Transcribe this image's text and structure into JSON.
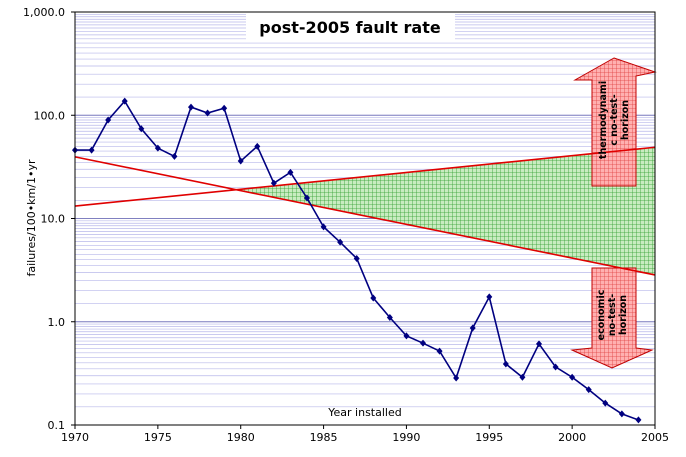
{
  "chart_data": {
    "type": "line",
    "title": "post-2005 fault rate",
    "xlabel": "Year installed",
    "ylabel": "failures/100•km/1•yr",
    "log_y": true,
    "grid": true,
    "xlim": [
      1970,
      2005
    ],
    "xticks": [
      1970,
      1975,
      1980,
      1985,
      1990,
      1995,
      2000,
      2005
    ],
    "ylim": [
      0.1,
      1000
    ],
    "yticks": [
      {
        "value": 0.1,
        "label": "0.1"
      },
      {
        "value": 1,
        "label": "1.0"
      },
      {
        "value": 10,
        "label": "10.0"
      },
      {
        "value": 100,
        "label": "100.0"
      },
      {
        "value": 1000,
        "label": "1,000.0"
      }
    ],
    "series": [
      {
        "color": "#000080",
        "x": [
          1970,
          1971,
          1972,
          1973,
          1974,
          1975,
          1976,
          1977,
          1978,
          1979,
          1980,
          1981,
          1982,
          1983,
          1984,
          1985,
          1986,
          1987,
          1988,
          1989,
          1990,
          1991,
          1992,
          1993,
          1994,
          1995,
          1996,
          1997,
          1998,
          1999,
          2000,
          2001,
          2002,
          2003,
          2004
        ],
        "values": [
          46,
          46,
          90,
          137,
          74,
          48,
          40,
          120,
          105,
          117,
          36,
          50,
          22,
          28,
          15.8,
          8.3,
          5.9,
          4.1,
          1.7,
          1.1,
          0.73,
          0.62,
          0.52,
          0.285,
          0.87,
          1.74,
          0.39,
          0.29,
          0.61,
          0.365,
          0.29,
          0.22,
          0.163,
          0.128,
          0.112
        ]
      }
    ],
    "trend_lines": [
      {
        "color": "#e00000",
        "x": [
          1970,
          2005
        ],
        "values": [
          13.2,
          49
        ]
      },
      {
        "color": "#e00000",
        "x": [
          1970,
          2005
        ],
        "values": [
          39.5,
          2.84
        ]
      }
    ],
    "band_color": "#2e9e2e",
    "annotations": [
      {
        "lines": [
          "thermodynami",
          "c no-test-",
          "horizon"
        ]
      },
      {
        "lines": [
          "economic",
          "no-test-",
          "horizon"
        ]
      }
    ]
  }
}
